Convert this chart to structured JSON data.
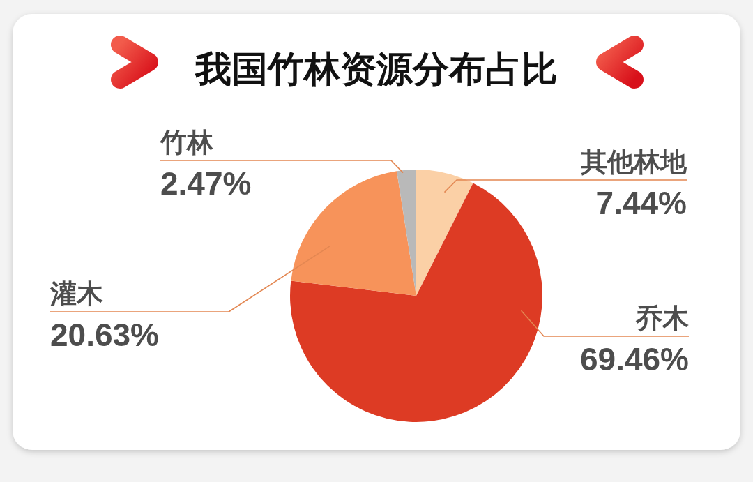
{
  "chart_data": {
    "type": "pie",
    "title": "我国竹林资源分布占比",
    "categories": [
      "其他林地",
      "乔木",
      "灌木",
      "竹林"
    ],
    "values": [
      7.44,
      69.46,
      20.63,
      2.47
    ],
    "value_labels": [
      "7.44%",
      "69.46%",
      "20.63%",
      "2.47%"
    ],
    "colors": [
      "#fbd0a6",
      "#dd3b24",
      "#f7935a",
      "#b9b9b9"
    ]
  }
}
